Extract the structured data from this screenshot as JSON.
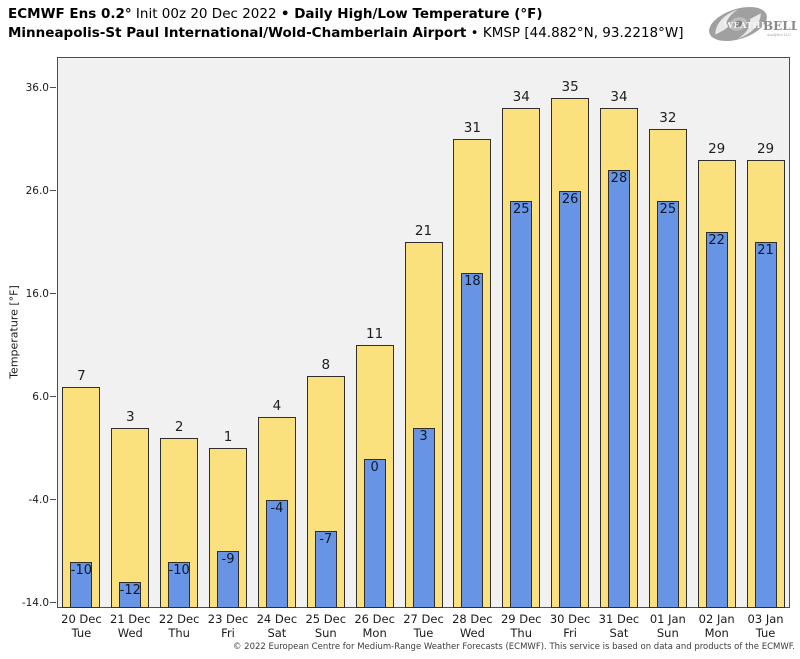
{
  "header": {
    "title_bold_1": "ECMWF Ens 0.2°",
    "title_regular_1": " Init 00z 20 Dec 2022 ",
    "title_bold_2": "• Daily High/Low Temperature (°F)",
    "subtitle_bold": "Minneapolis-St Paul International/Wold-Chamberlain Airport",
    "subtitle_regular": " • KMSP [44.882°N, 93.2218°W]",
    "logo": {
      "weather": "WEATHER",
      "bell": "BELL",
      "tagline": "Analytics LLC"
    }
  },
  "chart_data": {
    "type": "bar",
    "title": "ECMWF Ens 0.2° Init 00z 20 Dec 2022 • Daily High/Low Temperature (°F)",
    "subtitle": "Minneapolis-St Paul International/Wold-Chamberlain Airport • KMSP [44.882°N, 93.2218°W]",
    "xlabel": "",
    "ylabel": "Temperature [°F]",
    "ylim": [
      -14.5,
      39.0
    ],
    "yticks": [
      36.0,
      26.0,
      16.0,
      6.0,
      -4.0,
      -14.0
    ],
    "grid": false,
    "legend": false,
    "bars_from_axis_bottom": true,
    "categories": [
      {
        "date": "20 Dec",
        "day": "Tue"
      },
      {
        "date": "21 Dec",
        "day": "Wed"
      },
      {
        "date": "22 Dec",
        "day": "Thu"
      },
      {
        "date": "23 Dec",
        "day": "Fri"
      },
      {
        "date": "24 Dec",
        "day": "Sat"
      },
      {
        "date": "25 Dec",
        "day": "Sun"
      },
      {
        "date": "26 Dec",
        "day": "Mon"
      },
      {
        "date": "27 Dec",
        "day": "Tue"
      },
      {
        "date": "28 Dec",
        "day": "Wed"
      },
      {
        "date": "29 Dec",
        "day": "Thu"
      },
      {
        "date": "30 Dec",
        "day": "Fri"
      },
      {
        "date": "31 Dec",
        "day": "Sat"
      },
      {
        "date": "01 Jan",
        "day": "Sun"
      },
      {
        "date": "02 Jan",
        "day": "Mon"
      },
      {
        "date": "03 Jan",
        "day": "Tue"
      }
    ],
    "series": [
      {
        "name": "Daily High",
        "color": "#fae17e",
        "values": [
          7,
          3,
          2,
          1,
          4,
          8,
          11,
          21,
          31,
          34,
          35,
          34,
          32,
          29,
          29
        ]
      },
      {
        "name": "Daily Low",
        "color": "#6894e6",
        "values": [
          -10,
          -12,
          -10,
          -9,
          -4,
          -7,
          0,
          3,
          18,
          25,
          26,
          28,
          25,
          22,
          21
        ]
      }
    ],
    "colors": {
      "plot_background": "#f1f1f1",
      "bar_border": "#2e2e2e",
      "axis_spine": "#4d4d4d",
      "high_bar": "#fae17e",
      "low_bar": "#6894e6"
    }
  },
  "footer": {
    "credit": "© 2022 European Centre for Medium-Range Weather Forecasts (ECMWF). This service is based on data and products of the ECMWF."
  }
}
